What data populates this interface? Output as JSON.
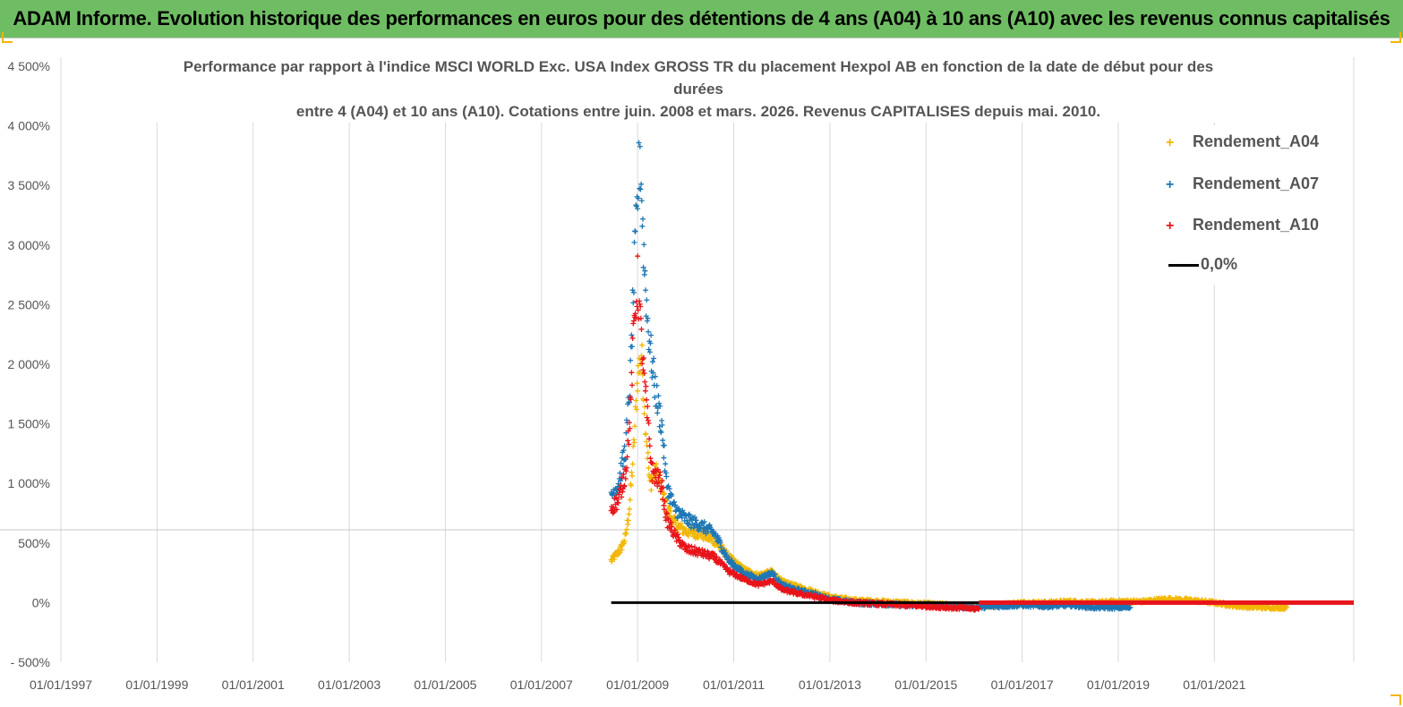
{
  "header": {
    "title": "ADAM Informe. Evolution historique des performances en euros pour des détentions de 4 ans (A04) à 10 ans (A10) avec les revenus connus capitalisés"
  },
  "chart_data": {
    "type": "scatter",
    "title_lines": [
      "Performance par rapport à l'indice MSCI WORLD Exc. USA Index GROSS TR  du placement Hexpol AB en fonction de la date de début pour des",
      "durées",
      "entre 4 (A04) et 10 ans (A10). Cotations entre juin. 2008 et mars. 2026. Revenus CAPITALISES depuis mai. 2010."
    ],
    "x_ticks": [
      "01/01/1997",
      "01/01/1999",
      "01/01/2001",
      "01/01/2003",
      "01/01/2005",
      "01/01/2007",
      "01/01/2009",
      "01/01/2011",
      "01/01/2013",
      "01/01/2015",
      "01/01/2017",
      "01/01/2019",
      "01/01/2021"
    ],
    "y_ticks": [
      "4 500%",
      "4 000%",
      "3 500%",
      "3 000%",
      "2 500%",
      "2 000%",
      "1 500%",
      "1 000%",
      "500%",
      "0%",
      "- 500%"
    ],
    "xlim": [
      1997.0,
      2023.9
    ],
    "ylim": [
      -500,
      4500
    ],
    "grid": "vertical",
    "legend_position": "top-right",
    "colors": {
      "A04": "#f2b705",
      "A07": "#1f77b4",
      "A10": "#e8141b",
      "zero": "#000000"
    },
    "series": [
      {
        "name": "Rendement_A04",
        "marker": "+",
        "points": [
          [
            2008.45,
            350
          ],
          [
            2008.55,
            400
          ],
          [
            2008.65,
            450
          ],
          [
            2008.75,
            550
          ],
          [
            2008.83,
            800
          ],
          [
            2008.92,
            1300
          ],
          [
            2009.0,
            1900
          ],
          [
            2009.08,
            2100
          ],
          [
            2009.15,
            1600
          ],
          [
            2009.25,
            1000
          ],
          [
            2009.4,
            1100
          ],
          [
            2009.6,
            800
          ],
          [
            2009.8,
            650
          ],
          [
            2010.0,
            600
          ],
          [
            2010.3,
            580
          ],
          [
            2010.6,
            520
          ],
          [
            2010.9,
            380
          ],
          [
            2011.2,
            280
          ],
          [
            2011.5,
            230
          ],
          [
            2011.8,
            260
          ],
          [
            2012.0,
            180
          ],
          [
            2012.3,
            140
          ],
          [
            2012.7,
            90
          ],
          [
            2013.0,
            50
          ],
          [
            2013.5,
            20
          ],
          [
            2014.0,
            10
          ],
          [
            2014.5,
            0
          ],
          [
            2015.0,
            -10
          ],
          [
            2015.5,
            -20
          ],
          [
            2016.0,
            -30
          ],
          [
            2016.5,
            -20
          ],
          [
            2017.0,
            0
          ],
          [
            2017.5,
            0
          ],
          [
            2018.0,
            10
          ],
          [
            2018.5,
            0
          ],
          [
            2019.0,
            10
          ],
          [
            2019.5,
            10
          ],
          [
            2020.0,
            30
          ],
          [
            2020.5,
            20
          ],
          [
            2021.0,
            0
          ],
          [
            2021.5,
            -30
          ],
          [
            2022.0,
            -40
          ],
          [
            2022.5,
            -40
          ]
        ]
      },
      {
        "name": "Rendement_A07",
        "marker": "+",
        "points": [
          [
            2008.45,
            900
          ],
          [
            2008.6,
            1000
          ],
          [
            2008.75,
            1300
          ],
          [
            2008.85,
            1900
          ],
          [
            2008.92,
            2700
          ],
          [
            2009.0,
            3400
          ],
          [
            2009.05,
            3800
          ],
          [
            2009.12,
            3000
          ],
          [
            2009.2,
            2400
          ],
          [
            2009.3,
            2000
          ],
          [
            2009.4,
            1700
          ],
          [
            2009.5,
            1500
          ],
          [
            2009.6,
            1000
          ],
          [
            2009.75,
            800
          ],
          [
            2010.0,
            700
          ],
          [
            2010.3,
            650
          ],
          [
            2010.6,
            580
          ],
          [
            2010.9,
            350
          ],
          [
            2011.2,
            250
          ],
          [
            2011.5,
            200
          ],
          [
            2011.8,
            250
          ],
          [
            2012.0,
            150
          ],
          [
            2012.3,
            110
          ],
          [
            2012.7,
            70
          ],
          [
            2013.0,
            30
          ],
          [
            2013.5,
            0
          ],
          [
            2014.0,
            -10
          ],
          [
            2014.5,
            -20
          ],
          [
            2015.0,
            -20
          ],
          [
            2015.5,
            -30
          ],
          [
            2016.0,
            -40
          ],
          [
            2016.5,
            -30
          ],
          [
            2017.0,
            -20
          ],
          [
            2017.5,
            -30
          ],
          [
            2018.0,
            -20
          ],
          [
            2018.5,
            -40
          ],
          [
            2019.0,
            -40
          ],
          [
            2019.25,
            -40
          ]
        ]
      },
      {
        "name": "Rendement_A10",
        "marker": "+",
        "points": [
          [
            2008.45,
            800
          ],
          [
            2008.6,
            850
          ],
          [
            2008.75,
            1100
          ],
          [
            2008.85,
            1600
          ],
          [
            2008.92,
            2300
          ],
          [
            2009.0,
            2700
          ],
          [
            2009.08,
            2200
          ],
          [
            2009.15,
            1800
          ],
          [
            2009.3,
            1100
          ],
          [
            2009.5,
            1000
          ],
          [
            2009.6,
            700
          ],
          [
            2009.8,
            550
          ],
          [
            2010.0,
            450
          ],
          [
            2010.3,
            420
          ],
          [
            2010.6,
            380
          ],
          [
            2010.9,
            260
          ],
          [
            2011.2,
            200
          ],
          [
            2011.5,
            150
          ],
          [
            2011.8,
            180
          ],
          [
            2012.0,
            110
          ],
          [
            2012.3,
            80
          ],
          [
            2012.7,
            50
          ],
          [
            2013.0,
            20
          ],
          [
            2013.5,
            0
          ],
          [
            2014.0,
            -10
          ],
          [
            2014.5,
            -20
          ],
          [
            2015.0,
            -30
          ],
          [
            2015.5,
            -40
          ],
          [
            2016.0,
            -50
          ],
          [
            2016.1,
            -50
          ]
        ]
      },
      {
        "name": "0,0%",
        "type": "line",
        "points": [
          [
            2008.45,
            0
          ],
          [
            2023.9,
            0
          ]
        ]
      }
    ]
  }
}
